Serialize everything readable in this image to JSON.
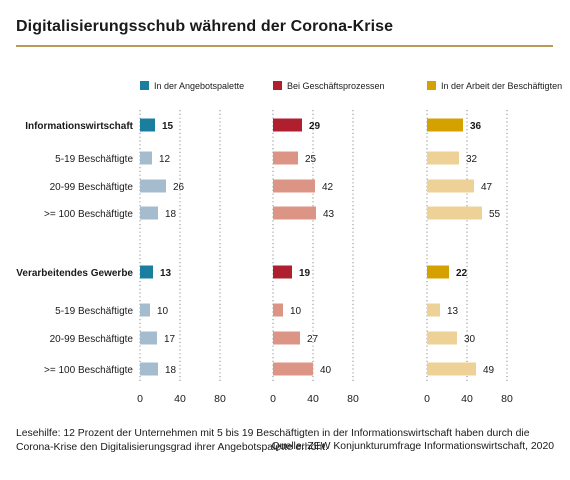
{
  "title": "Digitalisierungsschub während der Corona-Krise",
  "footnote": "Lesehilfe: 12 Prozent der Unternehmen mit 5 bis 19 Beschäftigten in der Informationswirtschaft haben durch die Corona-Krise den Digitalisierungsgrad ihrer Angebotspalette erhöht.",
  "source": "Quelle: ZEW Konjunkturumfrage Informationswirtschaft, 2020",
  "colors": {
    "panel_dark": [
      "#1a7f9e",
      "#b01f2e",
      "#d4a100"
    ],
    "panel_light": [
      "#a4bccd",
      "#dc9484",
      "#eed196"
    ],
    "title_rule": "#b99a58"
  },
  "chart_data": {
    "type": "bar",
    "orientation": "horizontal",
    "legend_position": "top",
    "grid": true,
    "xlim": [
      0,
      100
    ],
    "xticks": [
      "0",
      "40",
      "80"
    ],
    "categories": [
      "Informationswirtschaft",
      "5-19 Beschäftigte",
      "20-99 Beschäftigte",
      ">= 100 Beschäftigte",
      "Verarbeitendes Gewerbe",
      "5-19 Beschäftigte",
      "20-99 Beschäftigte",
      ">= 100 Beschäftigte"
    ],
    "bold_categories": [
      0,
      4
    ],
    "series": [
      {
        "name": "In der Angebotspalette",
        "values": [
          15,
          12,
          26,
          18,
          13,
          10,
          17,
          18
        ]
      },
      {
        "name": "Bei Geschäftsprozessen",
        "values": [
          29,
          25,
          42,
          43,
          19,
          10,
          27,
          40
        ]
      },
      {
        "name": "In der Arbeit der Beschäftigten",
        "values": [
          36,
          32,
          47,
          55,
          22,
          13,
          30,
          49
        ]
      }
    ]
  }
}
